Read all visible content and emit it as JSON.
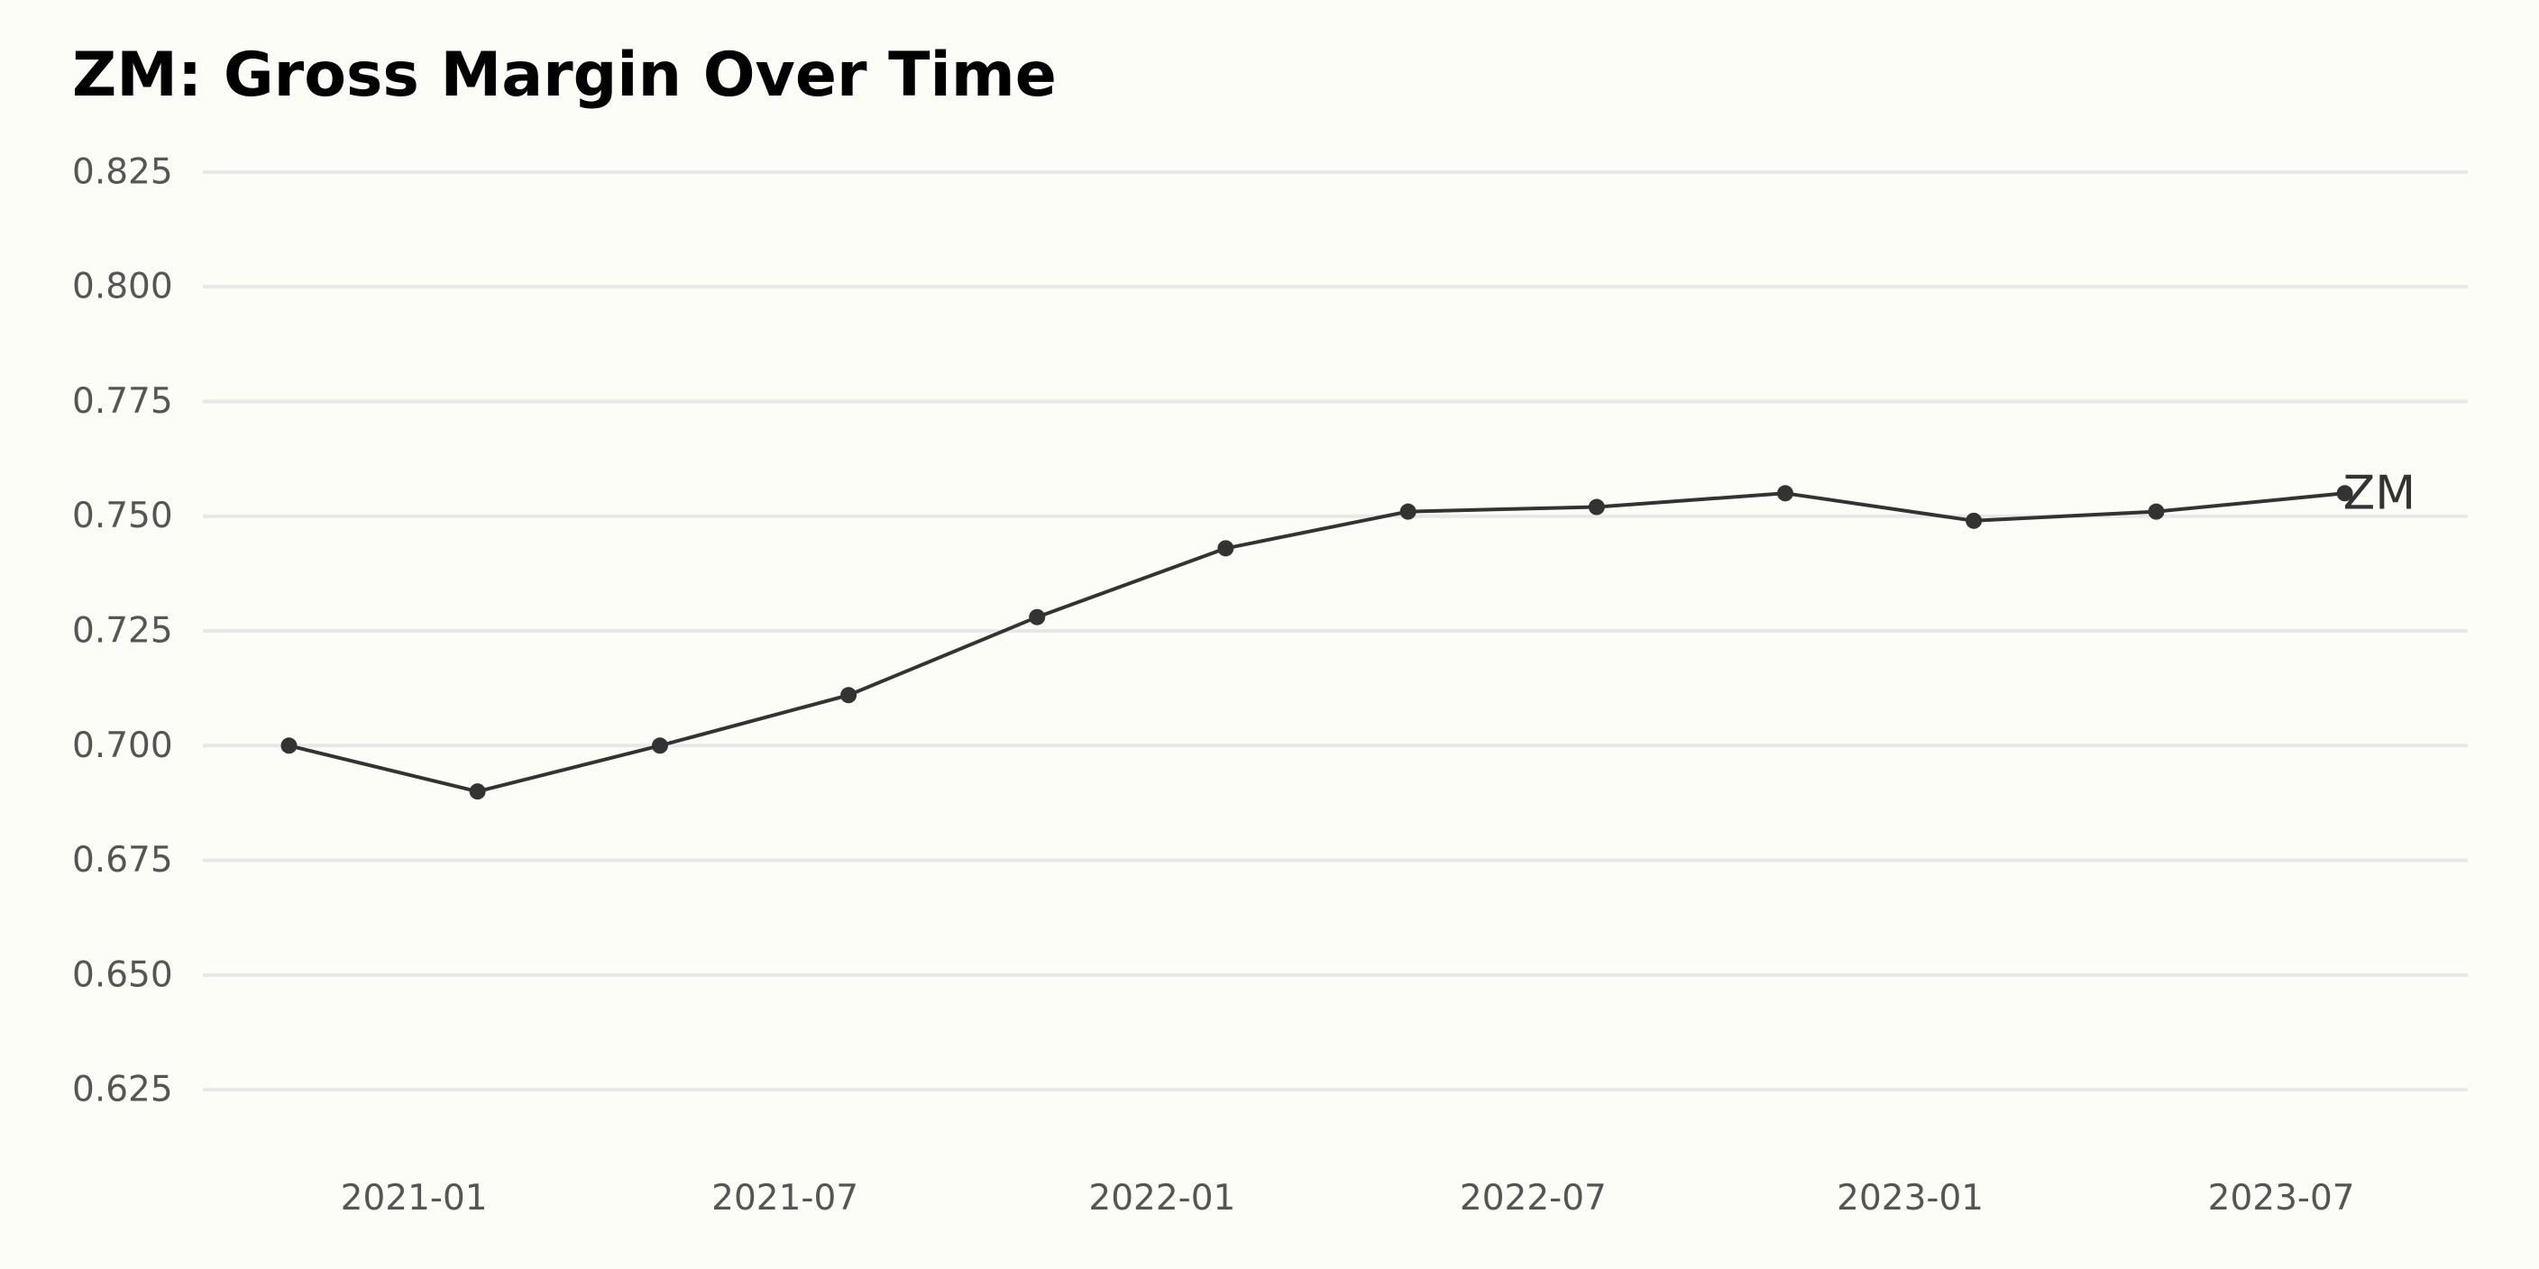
{
  "chart_data": {
    "type": "line",
    "title": "ZM: Gross Margin Over Time",
    "xlabel": "",
    "ylabel": "",
    "x": [
      "2020-11-01",
      "2021-02-01",
      "2021-05-01",
      "2021-08-01",
      "2021-11-01",
      "2022-02-01",
      "2022-05-01",
      "2022-08-01",
      "2022-11-01",
      "2023-02-01",
      "2023-05-01",
      "2023-08-01"
    ],
    "series": [
      {
        "name": "ZM",
        "values": [
          0.7,
          0.69,
          0.7,
          0.711,
          0.728,
          0.743,
          0.751,
          0.752,
          0.755,
          0.749,
          0.751,
          0.755
        ]
      }
    ],
    "ylim": [
      0.615,
      0.835
    ],
    "xlim": [
      "2020-09-20",
      "2023-09-30"
    ],
    "yticks": [
      0.625,
      0.65,
      0.675,
      0.7,
      0.725,
      0.75,
      0.775,
      0.8,
      0.825
    ],
    "ytick_labels": [
      "0.625",
      "0.650",
      "0.675",
      "0.700",
      "0.725",
      "0.750",
      "0.775",
      "0.800",
      "0.825"
    ],
    "xticks": [
      "2021-01-01",
      "2021-07-01",
      "2022-01-01",
      "2022-07-01",
      "2023-01-01",
      "2023-07-01"
    ],
    "xtick_labels": [
      "2021-01",
      "2021-07",
      "2022-01",
      "2022-07",
      "2023-01",
      "2023-07"
    ],
    "grid": "horizontal",
    "legend": "end-of-line label",
    "colors": {
      "background": "#fdfdf8",
      "line": "#333333",
      "grid": "#e8e8e8",
      "tick_text": "#555555",
      "title": "#000000"
    }
  }
}
